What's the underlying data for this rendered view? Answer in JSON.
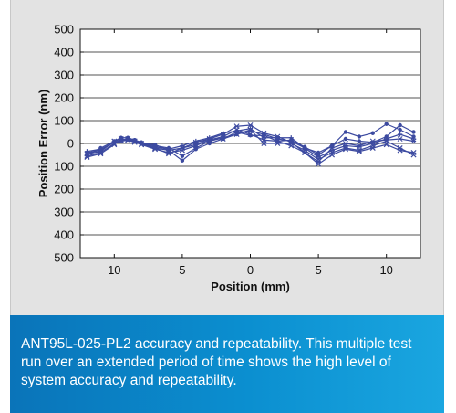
{
  "chart_data": {
    "type": "line",
    "xlabel": "Position (mm)",
    "ylabel": "Position Error (nm)",
    "x_tick_labels": [
      "10",
      "5",
      "0",
      "5",
      "10"
    ],
    "x_tick_values": [
      -10,
      -5,
      0,
      5,
      10
    ],
    "y_tick_labels": [
      "500",
      "400",
      "300",
      "200",
      "100",
      "0",
      "100",
      "200",
      "300",
      "400",
      "500"
    ],
    "y_tick_values": [
      500,
      400,
      300,
      200,
      100,
      0,
      -100,
      -200,
      -300,
      -400,
      -500
    ],
    "xlim": [
      -12.5,
      12.5
    ],
    "ylim": [
      -500,
      500
    ],
    "grid": "horizontal",
    "series_color": "#3c4aa0",
    "x": [
      -12,
      -11,
      -10,
      -9.5,
      -9,
      -8.5,
      -8,
      -7,
      -6,
      -5,
      -4,
      -3,
      -2,
      -1,
      0,
      1,
      2,
      3,
      4,
      5,
      6,
      7,
      8,
      9,
      10,
      11,
      12
    ],
    "series": [
      {
        "marker": "dot",
        "values": [
          -40,
          -30,
          5,
          15,
          20,
          15,
          5,
          -10,
          -20,
          -55,
          -20,
          10,
          25,
          40,
          55,
          40,
          20,
          10,
          -20,
          -40,
          -10,
          20,
          10,
          5,
          30,
          80,
          50
        ]
      },
      {
        "marker": "cross",
        "values": [
          -55,
          -40,
          0,
          10,
          15,
          10,
          0,
          -20,
          -30,
          -20,
          5,
          20,
          40,
          75,
          80,
          45,
          30,
          5,
          -40,
          -80,
          -20,
          0,
          -10,
          10,
          15,
          20,
          10
        ]
      },
      {
        "marker": "x",
        "values": [
          -45,
          -35,
          10,
          20,
          15,
          5,
          -5,
          -25,
          -40,
          -30,
          -10,
          15,
          30,
          60,
          40,
          15,
          10,
          -10,
          -40,
          -90,
          -50,
          -25,
          -35,
          -20,
          -5,
          -30,
          -40
        ]
      },
      {
        "marker": "plus",
        "values": [
          -35,
          -25,
          5,
          12,
          18,
          12,
          2,
          -15,
          -25,
          -10,
          10,
          25,
          45,
          55,
          65,
          25,
          25,
          25,
          -20,
          -60,
          -30,
          -10,
          -15,
          0,
          20,
          40,
          20
        ]
      },
      {
        "marker": "dot",
        "values": [
          -50,
          -20,
          10,
          25,
          25,
          15,
          0,
          -5,
          -30,
          -75,
          -25,
          0,
          20,
          50,
          35,
          35,
          10,
          15,
          -15,
          -50,
          -10,
          50,
          30,
          45,
          85,
          60,
          30
        ]
      },
      {
        "marker": "x",
        "values": [
          -60,
          -45,
          -5,
          15,
          20,
          10,
          -5,
          -20,
          -45,
          -20,
          -5,
          20,
          20,
          40,
          60,
          0,
          0,
          0,
          -30,
          -70,
          -40,
          -20,
          -30,
          -10,
          10,
          -20,
          -50
        ]
      }
    ]
  },
  "caption": {
    "text": "ANT95L-025-PL2 accuracy and repeatability. This multiple test run over an extended period of time shows the high level of system accuracy and repeatability."
  }
}
